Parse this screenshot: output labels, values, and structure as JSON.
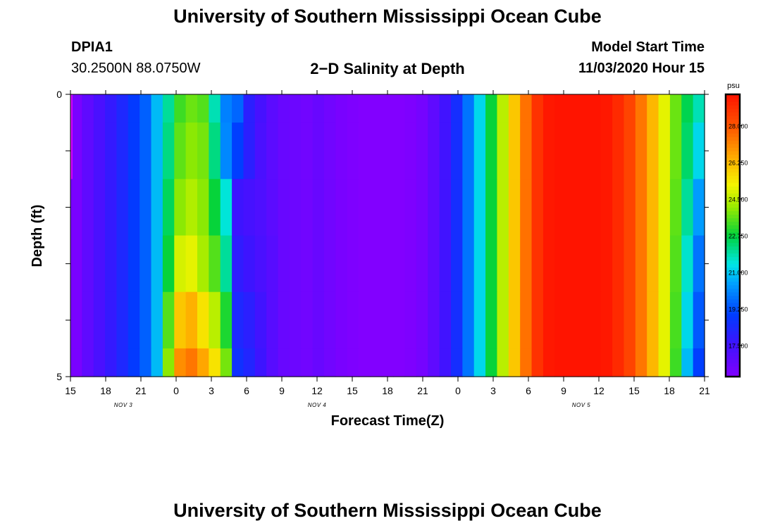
{
  "page": {
    "title_top": "University of Southern Mississippi Ocean Cube",
    "title_bottom": "University of Southern Mississippi Ocean Cube",
    "station_id": "DPIA1",
    "station_coords": "30.2500N 88.0750W",
    "product_title": "2−D Salinity at Depth",
    "model_start_label": "Model Start Time",
    "model_start_value": "11/03/2020 Hour 15"
  },
  "chart_data": {
    "type": "heatmap",
    "title": "2−D Salinity at Depth",
    "xlabel": "Forecast Time(Z)",
    "ylabel": "Depth (ft)",
    "ylim": [
      0,
      5
    ],
    "y_ticks": [
      0,
      1,
      2,
      3,
      4,
      5
    ],
    "y_tick_labels": [
      "0",
      "",
      "",
      "",
      "",
      "5"
    ],
    "x_tick_labels": [
      "15",
      "18",
      "21",
      "0",
      "3",
      "6",
      "9",
      "12",
      "15",
      "18",
      "21",
      "0",
      "3",
      "6",
      "9",
      "12",
      "15",
      "18",
      "21"
    ],
    "date_labels": [
      {
        "text": "NOV 3",
        "tick_index": 1.5
      },
      {
        "text": "NOV 4",
        "tick_index": 7
      },
      {
        "text": "NOV 5",
        "tick_index": 14.5
      }
    ],
    "colorbar": {
      "unit": "psu",
      "min": 16.0,
      "max": 29.5,
      "labels": [
        "28.000",
        "26.250",
        "24.500",
        "22.750",
        "21.000",
        "19.250",
        "17.500"
      ],
      "label_values": [
        28.0,
        26.25,
        24.5,
        22.75,
        21.0,
        19.25,
        17.5
      ]
    },
    "hours": [
      0,
      1,
      2,
      3,
      4,
      5,
      6,
      7,
      8,
      9,
      10,
      11,
      12,
      13,
      14,
      15,
      16,
      17,
      18,
      19,
      20,
      21,
      22,
      23,
      24,
      25,
      26,
      27,
      28,
      29,
      30,
      31,
      32,
      33,
      34,
      35,
      36,
      37,
      38,
      39,
      40,
      41,
      42,
      43,
      44,
      45,
      46,
      47,
      48,
      49,
      50,
      51,
      52,
      53,
      54
    ],
    "depth_bins": [
      "0.0-0.5",
      "0.5-1.5",
      "1.5-2.5",
      "2.5-3.5",
      "3.5-4.5",
      "4.5-5.0"
    ],
    "salinity": [
      [
        16.2,
        16.8,
        17.3,
        17.8,
        18.3,
        18.9,
        19.5,
        20.8,
        22.0,
        23.3,
        23.7,
        23.5,
        21.8,
        20.0,
        19.6,
        18.0,
        17.4,
        16.9,
        16.6,
        16.5,
        16.4,
        16.6,
        16.4,
        16.2,
        16.1,
        16.0,
        16.0,
        16.0,
        16.0,
        16.1,
        16.3,
        16.8,
        17.5,
        18.5,
        19.8,
        21.2,
        22.8,
        24.5,
        26.0,
        27.5,
        28.8,
        29.4,
        29.5,
        29.5,
        29.5,
        29.5,
        29.4,
        29.0,
        28.4,
        27.4,
        26.3,
        25.0,
        23.7,
        22.6,
        21.8
      ],
      [
        16.2,
        16.8,
        17.3,
        17.8,
        18.3,
        18.9,
        19.5,
        20.8,
        22.2,
        23.6,
        24.0,
        23.8,
        22.2,
        20.1,
        19.0,
        18.0,
        17.3,
        16.9,
        16.6,
        16.5,
        16.4,
        16.6,
        16.4,
        16.2,
        16.1,
        16.0,
        16.0,
        16.0,
        16.0,
        16.1,
        16.3,
        16.8,
        17.5,
        18.5,
        19.8,
        21.2,
        22.8,
        24.5,
        26.0,
        27.5,
        28.8,
        29.4,
        29.5,
        29.5,
        29.5,
        29.5,
        29.4,
        29.0,
        28.4,
        27.4,
        26.3,
        25.0,
        23.7,
        22.4,
        21.2
      ],
      [
        16.2,
        16.8,
        17.3,
        17.8,
        18.3,
        18.9,
        19.5,
        20.8,
        22.5,
        24.0,
        24.4,
        24.0,
        22.8,
        21.5,
        17.6,
        17.4,
        17.2,
        16.9,
        16.6,
        16.5,
        16.4,
        16.6,
        16.4,
        16.2,
        16.1,
        16.0,
        16.0,
        16.0,
        16.0,
        16.1,
        16.3,
        16.8,
        17.5,
        18.5,
        19.8,
        21.2,
        22.8,
        24.5,
        26.0,
        27.5,
        28.8,
        29.4,
        29.5,
        29.5,
        29.5,
        29.5,
        29.4,
        29.0,
        28.4,
        27.4,
        26.3,
        25.0,
        23.6,
        22.0,
        20.4
      ],
      [
        16.2,
        16.8,
        17.3,
        17.8,
        18.3,
        18.9,
        19.5,
        20.8,
        22.8,
        24.8,
        25.0,
        24.3,
        23.5,
        22.0,
        17.9,
        17.6,
        17.3,
        17.0,
        16.6,
        16.5,
        16.4,
        16.6,
        16.4,
        16.2,
        16.1,
        16.0,
        16.0,
        16.0,
        16.0,
        16.1,
        16.3,
        16.8,
        17.5,
        18.5,
        19.8,
        21.2,
        22.8,
        24.5,
        26.0,
        27.5,
        28.8,
        29.4,
        29.5,
        29.5,
        29.5,
        29.5,
        29.4,
        29.0,
        28.4,
        27.4,
        26.3,
        25.0,
        23.5,
        21.6,
        19.8
      ],
      [
        16.2,
        16.8,
        17.3,
        17.8,
        18.3,
        18.9,
        19.5,
        20.8,
        23.5,
        26.0,
        26.4,
        25.5,
        24.5,
        23.0,
        18.3,
        18.0,
        17.5,
        17.0,
        16.6,
        16.5,
        16.4,
        16.6,
        16.4,
        16.2,
        16.1,
        16.0,
        16.0,
        16.0,
        16.0,
        16.1,
        16.3,
        16.8,
        17.5,
        18.5,
        19.8,
        21.2,
        22.8,
        24.5,
        26.0,
        27.5,
        28.8,
        29.4,
        29.5,
        29.5,
        29.5,
        29.5,
        29.4,
        29.0,
        28.4,
        27.4,
        26.3,
        25.0,
        23.4,
        21.2,
        19.4
      ],
      [
        16.2,
        16.8,
        17.3,
        17.8,
        18.3,
        18.9,
        19.5,
        20.8,
        24.0,
        27.0,
        27.4,
        26.6,
        25.5,
        23.8,
        18.6,
        18.2,
        17.6,
        17.0,
        16.6,
        16.5,
        16.4,
        16.6,
        16.4,
        16.2,
        16.1,
        16.0,
        16.0,
        16.0,
        16.0,
        16.1,
        16.3,
        16.8,
        17.5,
        18.5,
        19.8,
        21.2,
        22.8,
        24.5,
        26.0,
        27.5,
        28.8,
        29.4,
        29.5,
        29.5,
        29.5,
        29.5,
        29.4,
        29.0,
        28.4,
        27.4,
        26.3,
        25.0,
        23.3,
        20.8,
        19.0
      ]
    ]
  }
}
